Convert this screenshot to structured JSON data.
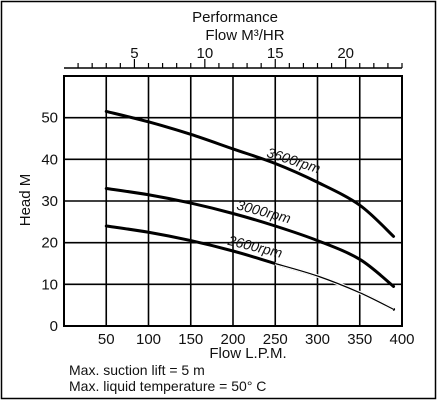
{
  "chart_data": {
    "type": "line",
    "title": "Performance",
    "top_axis": {
      "label": "Flow  M³/HR",
      "ticks": [
        "5",
        "10",
        "15",
        "20"
      ],
      "tick_values": [
        5,
        10,
        15,
        20
      ]
    },
    "xlabel": "Flow  L.P.M.",
    "ylabel": "Head  M",
    "xlim": [
      0,
      400
    ],
    "ylim": [
      0,
      60
    ],
    "xticks": [
      "50",
      "100",
      "150",
      "200",
      "250",
      "300",
      "350",
      "400"
    ],
    "yticks": [
      "0",
      "10",
      "20",
      "30",
      "40",
      "50"
    ],
    "grid": true,
    "series": [
      {
        "name": "3600rpm",
        "x": [
          50,
          100,
          150,
          200,
          250,
          300,
          350,
          390
        ],
        "y": [
          51.5,
          49,
          46,
          42.5,
          39,
          34.5,
          29,
          21.5
        ]
      },
      {
        "name": "3000rpm",
        "x": [
          50,
          100,
          150,
          200,
          250,
          300,
          350,
          390
        ],
        "y": [
          33,
          31.5,
          29.5,
          27,
          24,
          20.5,
          16,
          9.5
        ]
      },
      {
        "name": "2600rpm",
        "x": [
          50,
          100,
          150,
          200,
          250,
          300,
          350,
          390
        ],
        "y": [
          24,
          22.5,
          20.5,
          18,
          15,
          12,
          8,
          4
        ]
      }
    ],
    "notes": [
      "Max. suction lift = 5 m",
      "Max. liquid temperature = 50° C"
    ]
  }
}
